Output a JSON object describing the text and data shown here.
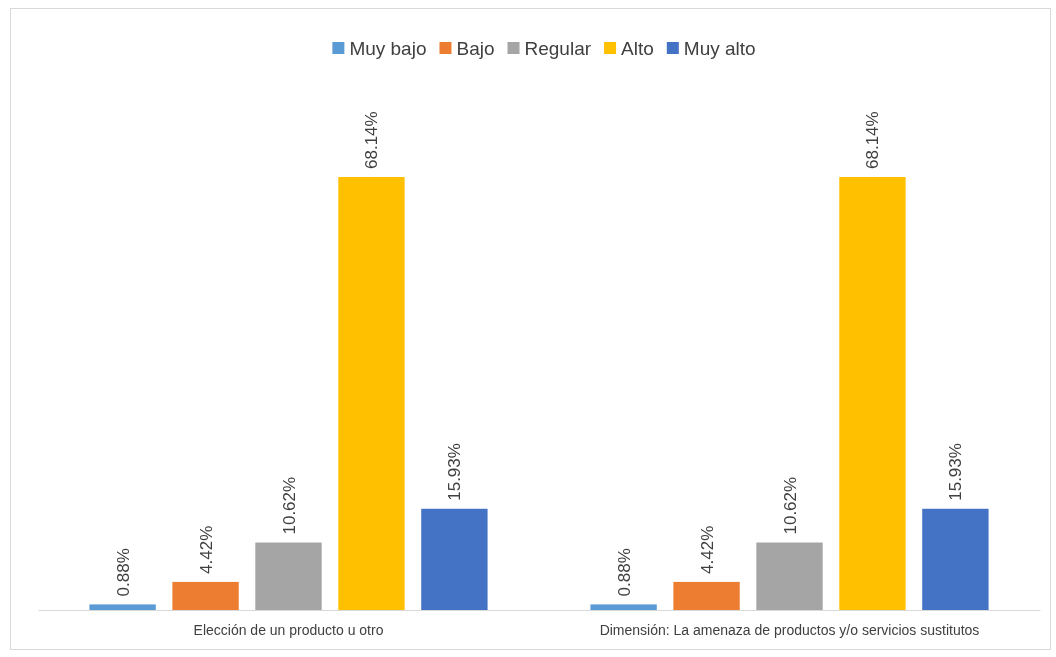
{
  "chart_data": {
    "type": "bar",
    "categories": [
      "Elección de un producto u otro",
      "Dimensión: La amenaza de productos y/o servicios sustitutos"
    ],
    "series": [
      {
        "name": "Muy bajo",
        "color": "#5b9bd5",
        "values": [
          0.88,
          0.88
        ],
        "value_labels": [
          "0.88%",
          "0.88%"
        ]
      },
      {
        "name": "Bajo",
        "color": "#ed7d31",
        "values": [
          4.42,
          4.42
        ],
        "value_labels": [
          "4.42%",
          "4.42%"
        ]
      },
      {
        "name": "Regular",
        "color": "#a5a5a5",
        "values": [
          10.62,
          10.62
        ],
        "value_labels": [
          "10.62%",
          "10.62%"
        ]
      },
      {
        "name": "Alto",
        "color": "#ffc000",
        "values": [
          68.14,
          68.14
        ],
        "value_labels": [
          "68.14%",
          "68.14%"
        ]
      },
      {
        "name": "Muy alto",
        "color": "#4472c4",
        "values": [
          15.93,
          15.93
        ],
        "value_labels": [
          "15.93%",
          "15.93%"
        ]
      }
    ],
    "legend": "top"
  }
}
